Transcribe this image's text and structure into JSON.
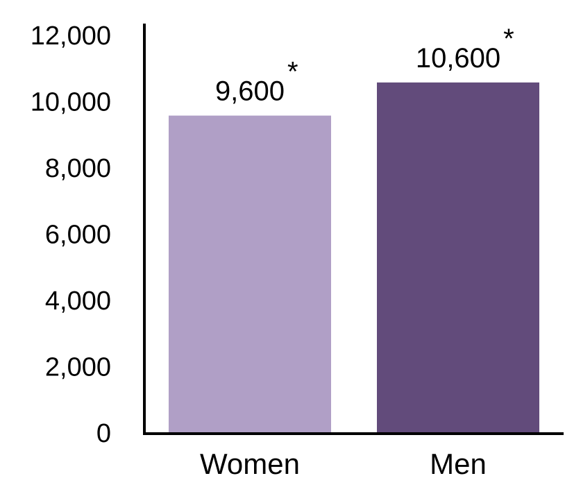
{
  "chart_data": {
    "type": "bar",
    "title": "",
    "xlabel": "",
    "ylabel": "",
    "categories": [
      "Women",
      "Men"
    ],
    "values": [
      9600,
      10600
    ],
    "value_labels": [
      "9,600",
      "10,600"
    ],
    "annotations": [
      "*",
      "*"
    ],
    "colors": [
      "#b09fc6",
      "#624b7b"
    ],
    "ylim": [
      0,
      12000
    ],
    "yticks": [
      0,
      2000,
      4000,
      6000,
      8000,
      10000,
      12000
    ],
    "ytick_labels": [
      "0",
      "2,000",
      "4,000",
      "6,000",
      "8,000",
      "10,000",
      "12,000"
    ],
    "grid": false,
    "legend": "none"
  }
}
